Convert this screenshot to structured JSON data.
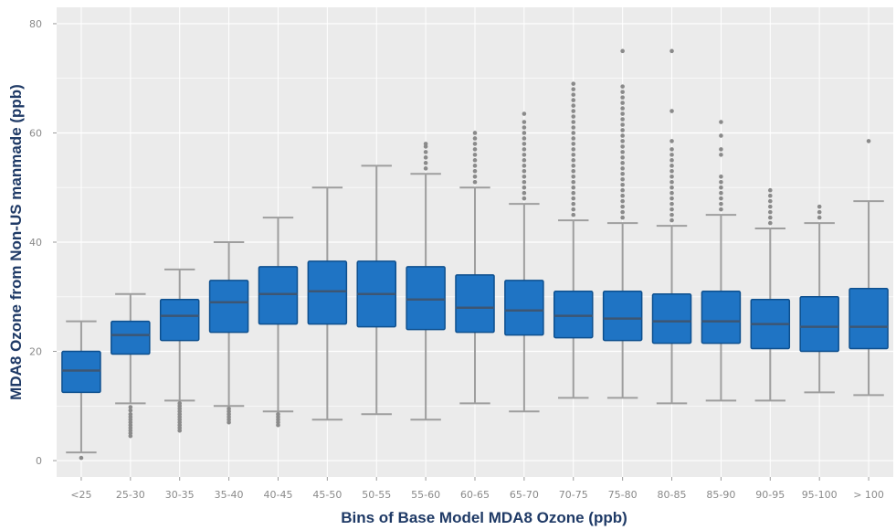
{
  "chart_data": {
    "type": "box",
    "title": "",
    "xlabel": "Bins of Base Model MDA8 Ozone (ppb)",
    "ylabel": "MDA8 Ozone from Non-US manmade (ppb)",
    "ylim": [
      -3,
      83
    ],
    "yticks": [
      0,
      20,
      40,
      60,
      80
    ],
    "grid": true,
    "legend": "none",
    "categories": [
      "<25",
      "25-30",
      "30-35",
      "35-40",
      "40-45",
      "45-50",
      "50-55",
      "55-60",
      "60-65",
      "65-70",
      "70-75",
      "75-80",
      "80-85",
      "85-90",
      "90-95",
      "95-100",
      "> 100"
    ],
    "boxes": [
      {
        "q1": 12.5,
        "median": 16.5,
        "q3": 20,
        "whisker_low": 1.5,
        "whisker_high": 25.5,
        "outliers": [
          0.5
        ]
      },
      {
        "q1": 19.5,
        "median": 23,
        "q3": 25.5,
        "whisker_low": 10.5,
        "whisker_high": 30.5,
        "outliers": [
          9.8,
          9.2,
          8.5,
          8,
          7.5,
          7,
          6.5,
          6,
          5.5,
          5,
          4.5
        ]
      },
      {
        "q1": 22,
        "median": 26.5,
        "q3": 29.5,
        "whisker_low": 11,
        "whisker_high": 35,
        "outliers": [
          10.5,
          10,
          9.5,
          9,
          8.5,
          8,
          7.5,
          7,
          6.5,
          6,
          5.5
        ]
      },
      {
        "q1": 23.5,
        "median": 29,
        "q3": 33,
        "whisker_low": 10,
        "whisker_high": 40,
        "outliers": [
          9.5,
          9,
          8.5,
          8,
          7.5,
          7
        ]
      },
      {
        "q1": 25,
        "median": 30.5,
        "q3": 35.5,
        "whisker_low": 9,
        "whisker_high": 44.5,
        "outliers": [
          8.5,
          8,
          7.5,
          7,
          6.5
        ]
      },
      {
        "q1": 25,
        "median": 31,
        "q3": 36.5,
        "whisker_low": 7.5,
        "whisker_high": 50,
        "outliers": []
      },
      {
        "q1": 24.5,
        "median": 30.5,
        "q3": 36.5,
        "whisker_low": 8.5,
        "whisker_high": 54,
        "outliers": []
      },
      {
        "q1": 24,
        "median": 29.5,
        "q3": 35.5,
        "whisker_low": 7.5,
        "whisker_high": 52.5,
        "outliers": [
          53.5,
          54.5,
          55.5,
          56.5,
          57.5,
          58
        ]
      },
      {
        "q1": 23.5,
        "median": 28,
        "q3": 34,
        "whisker_low": 10.5,
        "whisker_high": 50,
        "outliers": [
          51,
          52,
          53,
          54,
          55,
          56,
          57,
          58,
          59,
          60
        ]
      },
      {
        "q1": 23,
        "median": 27.5,
        "q3": 33,
        "whisker_low": 9,
        "whisker_high": 47,
        "outliers": [
          48,
          49,
          50,
          51,
          52,
          53,
          54,
          55,
          56,
          57,
          58,
          59,
          60,
          61,
          62,
          63.5
        ]
      },
      {
        "q1": 22.5,
        "median": 26.5,
        "q3": 31,
        "whisker_low": 11.5,
        "whisker_high": 44,
        "outliers": [
          45,
          46,
          47,
          48,
          49,
          50,
          51,
          52,
          53,
          54,
          55,
          56,
          57,
          58,
          59,
          60,
          61,
          62,
          63,
          64,
          65,
          66,
          67,
          68,
          69
        ]
      },
      {
        "q1": 22,
        "median": 26,
        "q3": 31,
        "whisker_low": 11.5,
        "whisker_high": 43.5,
        "outliers": [
          44.5,
          45.5,
          46.5,
          47.5,
          48.5,
          49.5,
          50.5,
          51.5,
          52.5,
          53.5,
          54.5,
          55.5,
          56.5,
          57.5,
          58.5,
          59.5,
          60.5,
          61.5,
          62.5,
          63.5,
          64.5,
          65.5,
          66.5,
          67.5,
          68.5,
          75
        ]
      },
      {
        "q1": 21.5,
        "median": 25.5,
        "q3": 30.5,
        "whisker_low": 10.5,
        "whisker_high": 43,
        "outliers": [
          44,
          45,
          46,
          47,
          48,
          49,
          50,
          51,
          52,
          53,
          54,
          55,
          56,
          57,
          58.5,
          64,
          75
        ]
      },
      {
        "q1": 21.5,
        "median": 25.5,
        "q3": 31,
        "whisker_low": 11,
        "whisker_high": 45,
        "outliers": [
          46,
          47,
          48,
          49,
          50,
          51,
          52,
          56,
          57,
          59.5,
          62
        ]
      },
      {
        "q1": 20.5,
        "median": 25,
        "q3": 29.5,
        "whisker_low": 11,
        "whisker_high": 42.5,
        "outliers": [
          43.5,
          44.5,
          45.5,
          46.5,
          47.5,
          48.5,
          49.5
        ]
      },
      {
        "q1": 20,
        "median": 24.5,
        "q3": 30,
        "whisker_low": 12.5,
        "whisker_high": 43.5,
        "outliers": [
          44.5,
          45.5,
          46.5
        ]
      },
      {
        "q1": 20.5,
        "median": 24.5,
        "q3": 31.5,
        "whisker_low": 12,
        "whisker_high": 47.5,
        "outliers": [
          58.5
        ]
      }
    ],
    "colors": {
      "box_fill": "#1f74c4",
      "box_stroke": "#0d4f8e",
      "median": "#3d5673",
      "whisker": "#9e9e9e",
      "outlier": "#8a8a8a",
      "panel_bg": "#ebebeb",
      "grid": "#ffffff",
      "axis_title": "#1f3a66",
      "tick_label": "#8a8a8a"
    }
  }
}
